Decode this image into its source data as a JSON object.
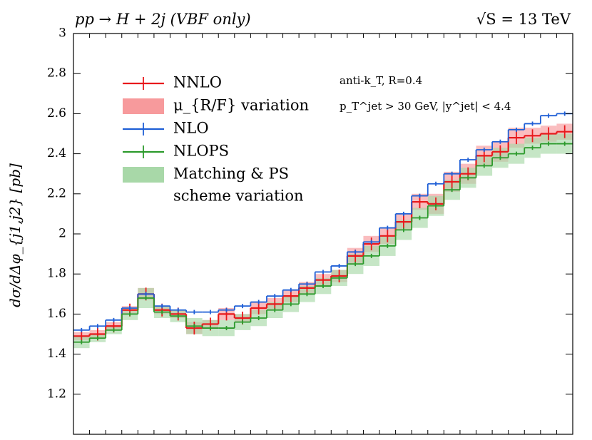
{
  "chart_data": {
    "type": "step",
    "title": "pp → H + 2j (VBF only)",
    "subtitle": "√S = 13 TeV",
    "y_label": "dσ/dΔφ_{j1,j2} [pb]",
    "annotations": [
      "anti-k_T, R=0.4",
      "p_T^jet > 30 GeV, |y^jet| < 4.4"
    ],
    "categories": [
      null,
      null,
      null,
      null,
      null,
      null,
      null,
      null,
      null,
      null,
      null,
      null,
      null,
      null,
      null,
      null,
      null,
      null,
      null,
      null,
      null,
      null,
      null,
      null,
      null,
      null,
      null,
      null,
      null,
      null,
      null
    ],
    "ylim": [
      1.0,
      3.0
    ],
    "yticks": [
      1.2,
      1.4,
      1.6,
      1.8,
      2,
      2.2,
      2.4,
      2.6,
      2.8,
      3
    ],
    "series": [
      {
        "name": "NNLO",
        "color": "#e8191c",
        "values": [
          1.49,
          1.5,
          1.54,
          1.62,
          1.7,
          1.62,
          1.6,
          1.53,
          1.55,
          1.6,
          1.58,
          1.63,
          1.65,
          1.69,
          1.73,
          1.77,
          1.79,
          1.89,
          1.95,
          1.99,
          2.06,
          2.16,
          2.15,
          2.26,
          2.3,
          2.39,
          2.41,
          2.48,
          2.49,
          2.5,
          2.51
        ],
        "errors": [
          0.02,
          0.02,
          0.02,
          0.02,
          0.03,
          0.02,
          0.02,
          0.03,
          0.02,
          0.03,
          0.02,
          0.03,
          0.03,
          0.03,
          0.03,
          0.03,
          0.03,
          0.04,
          0.04,
          0.04,
          0.04,
          0.04,
          0.05,
          0.05,
          0.05,
          0.05,
          0.05,
          0.05,
          0.04,
          0.04,
          0.04
        ],
        "band_name": [
          "μ_{R/F} variation"
        ],
        "band_color": "#f79a9c"
      },
      {
        "name": "NLO",
        "color": "#1f5fd6",
        "values": [
          1.52,
          1.54,
          1.57,
          1.63,
          1.7,
          1.64,
          1.62,
          1.61,
          1.61,
          1.62,
          1.64,
          1.66,
          1.69,
          1.72,
          1.75,
          1.81,
          1.84,
          1.91,
          1.96,
          2.03,
          2.1,
          2.19,
          2.25,
          2.3,
          2.37,
          2.42,
          2.46,
          2.52,
          2.55,
          2.59,
          2.6
        ]
      },
      {
        "name": "NLOPS",
        "color": "#2c9a2c",
        "values": [
          1.46,
          1.48,
          1.52,
          1.6,
          1.68,
          1.61,
          1.59,
          1.54,
          1.53,
          1.53,
          1.56,
          1.58,
          1.62,
          1.65,
          1.7,
          1.74,
          1.78,
          1.85,
          1.89,
          1.94,
          2.02,
          2.08,
          2.14,
          2.22,
          2.28,
          2.34,
          2.38,
          2.4,
          2.43,
          2.45,
          2.45
        ],
        "errors": [
          0.03,
          0.02,
          0.02,
          0.03,
          0.05,
          0.03,
          0.03,
          0.04,
          0.04,
          0.04,
          0.04,
          0.04,
          0.04,
          0.04,
          0.04,
          0.04,
          0.04,
          0.05,
          0.05,
          0.05,
          0.05,
          0.05,
          0.05,
          0.05,
          0.05,
          0.05,
          0.05,
          0.05,
          0.05,
          0.05,
          0.05
        ],
        "band_name": [
          "Matching & PS",
          "scheme variation"
        ],
        "band_color": "#a8d8a8"
      }
    ]
  }
}
